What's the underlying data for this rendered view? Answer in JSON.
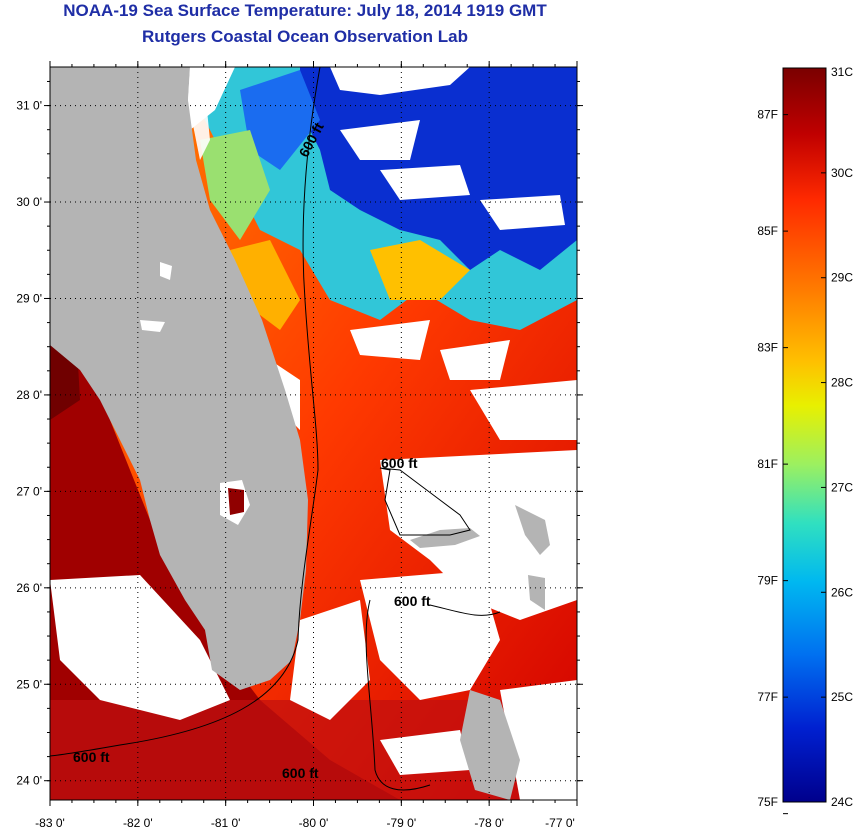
{
  "title": "NOAA-19 Sea Surface Temperature:  July 18, 2014 1919 GMT",
  "subtitle": "Rutgers Coastal Ocean Observation Lab",
  "map": {
    "lat_ticks": [
      "31 0'",
      "30 0'",
      "29 0'",
      "28 0'",
      "27 0'",
      "26 0'",
      "25 0'",
      "24 0'"
    ],
    "lon_ticks": [
      "-83 0'",
      "-82 0'",
      "-81 0'",
      "-80 0'",
      "-79 0'",
      "-78 0'",
      "-77 0'"
    ],
    "lat_range": [
      23.8,
      31.4
    ],
    "lon_range": [
      -83.0,
      -77.0
    ],
    "contour_label": "600 ft",
    "land_color": "#b4b4b4",
    "cloud_color": "#ffffff"
  },
  "colorbar": {
    "celsius_labels": [
      "31C",
      "30C",
      "29C",
      "28C",
      "27C",
      "26C",
      "25C",
      "24C"
    ],
    "fahrenheit_labels": [
      "87F",
      "85F",
      "83F",
      "81F",
      "79F",
      "77F",
      "75F"
    ],
    "celsius_range": [
      24,
      31
    ],
    "colors_top_to_bottom": [
      "#7a0000",
      "#c00000",
      "#ff2a00",
      "#ff7a00",
      "#ffc000",
      "#e8f000",
      "#9cf060",
      "#30e0c0",
      "#00b8f0",
      "#0070f0",
      "#0020d0",
      "#00008c"
    ]
  }
}
